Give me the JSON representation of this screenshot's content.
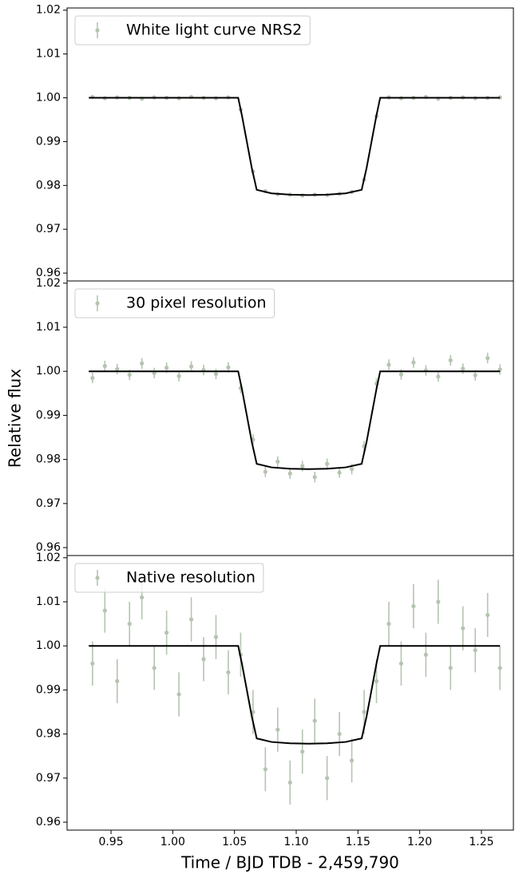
{
  "chart_data": [
    {
      "type": "errorbar",
      "legend": "White light curve NRS2",
      "legend_loc": "upper left",
      "color": "#b5c4b1",
      "x": [
        0.935,
        0.945,
        0.955,
        0.965,
        0.975,
        0.985,
        0.995,
        1.005,
        1.015,
        1.025,
        1.035,
        1.045,
        1.055,
        1.065,
        1.075,
        1.085,
        1.095,
        1.105,
        1.115,
        1.125,
        1.135,
        1.145,
        1.155,
        1.165,
        1.175,
        1.185,
        1.195,
        1.205,
        1.215,
        1.225,
        1.235,
        1.245,
        1.255,
        1.265
      ],
      "values": [
        1.0002,
        0.9999,
        1.0001,
        1.0,
        0.9998,
        1.0001,
        1.0,
        0.9999,
        1.0002,
        1.0,
        0.9999,
        1.0001,
        0.9973,
        0.9832,
        0.9787,
        0.978,
        0.9779,
        0.9777,
        0.9779,
        0.9778,
        0.9781,
        0.9785,
        0.9813,
        0.9958,
        1.0001,
        0.9999,
        1.0,
        1.0002,
        0.9998,
        1.0,
        1.0001,
        0.9999,
        1.0,
        1.0001
      ],
      "yerr": 0.0004,
      "model": {
        "color": "#000000",
        "x": [
          0.932,
          1.053,
          1.056,
          1.06,
          1.064,
          1.068,
          1.08,
          1.095,
          1.11,
          1.125,
          1.14,
          1.153,
          1.157,
          1.161,
          1.165,
          1.168,
          1.265
        ],
        "values": [
          1.0,
          1.0,
          0.996,
          0.99,
          0.984,
          0.979,
          0.9782,
          0.9779,
          0.9778,
          0.9779,
          0.9782,
          0.979,
          0.984,
          0.99,
          0.996,
          1.0,
          1.0
        ]
      },
      "xlim": [
        0.9144,
        1.2759
      ],
      "ylim": [
        0.9582,
        1.0205
      ],
      "yticks": [
        0.96,
        0.97,
        0.98,
        0.99,
        {
          "value": 1.0,
          "label": "1.00"
        },
        1.01,
        1.02
      ]
    },
    {
      "type": "errorbar",
      "legend": "30 pixel resolution",
      "legend_loc": "upper left",
      "color": "#b5c4b1",
      "ylabel": "Relative flux",
      "x": [
        0.935,
        0.945,
        0.955,
        0.965,
        0.975,
        0.985,
        0.995,
        1.005,
        1.015,
        1.025,
        1.035,
        1.045,
        1.055,
        1.065,
        1.075,
        1.085,
        1.095,
        1.105,
        1.115,
        1.125,
        1.135,
        1.145,
        1.155,
        1.165,
        1.175,
        1.185,
        1.195,
        1.205,
        1.215,
        1.225,
        1.235,
        1.245,
        1.255,
        1.265
      ],
      "values": [
        0.9985,
        1.0012,
        1.0005,
        0.9992,
        1.0018,
        0.9996,
        1.0008,
        0.9989,
        1.0011,
        1.0003,
        0.9994,
        1.0009,
        0.9962,
        0.9845,
        0.9772,
        0.9795,
        0.9768,
        0.9785,
        0.976,
        0.979,
        0.977,
        0.9778,
        0.983,
        0.9972,
        1.0015,
        0.9993,
        1.002,
        1.0002,
        0.9988,
        1.0025,
        1.0006,
        0.9991,
        1.003,
        1.0004
      ],
      "yerr": 0.0012,
      "model": {
        "color": "#000000",
        "x": [
          0.932,
          1.053,
          1.056,
          1.06,
          1.064,
          1.068,
          1.08,
          1.095,
          1.11,
          1.125,
          1.14,
          1.153,
          1.157,
          1.161,
          1.165,
          1.168,
          1.265
        ],
        "values": [
          1.0,
          1.0,
          0.996,
          0.99,
          0.984,
          0.979,
          0.9782,
          0.9779,
          0.9778,
          0.9779,
          0.9782,
          0.979,
          0.984,
          0.99,
          0.996,
          1.0,
          1.0
        ]
      },
      "xlim": [
        0.9144,
        1.2759
      ],
      "ylim": [
        0.9582,
        1.0205
      ],
      "yticks": [
        0.96,
        0.97,
        0.98,
        0.99,
        {
          "value": 1.0,
          "label": "1.00"
        },
        1.01,
        1.02
      ]
    },
    {
      "type": "errorbar",
      "legend": "Native resolution",
      "legend_loc": "upper left",
      "color": "#b5c4b1",
      "xlabel": "Time / BJD TDB - 2,459,790",
      "x": [
        0.935,
        0.945,
        0.955,
        0.965,
        0.975,
        0.985,
        0.995,
        1.005,
        1.015,
        1.025,
        1.035,
        1.045,
        1.055,
        1.065,
        1.075,
        1.085,
        1.095,
        1.105,
        1.115,
        1.125,
        1.135,
        1.145,
        1.155,
        1.165,
        1.175,
        1.185,
        1.195,
        1.205,
        1.215,
        1.225,
        1.235,
        1.245,
        1.255,
        1.265
      ],
      "values": [
        0.996,
        1.008,
        0.992,
        1.005,
        1.011,
        0.995,
        1.003,
        0.989,
        1.006,
        0.997,
        1.002,
        0.994,
        0.998,
        0.985,
        0.972,
        0.981,
        0.969,
        0.976,
        0.983,
        0.97,
        0.98,
        0.974,
        0.985,
        0.992,
        1.005,
        0.996,
        1.009,
        0.998,
        1.01,
        0.995,
        1.004,
        0.999,
        1.007,
        0.995
      ],
      "yerr": 0.005,
      "model": {
        "color": "#000000",
        "x": [
          0.932,
          1.053,
          1.056,
          1.06,
          1.064,
          1.068,
          1.08,
          1.095,
          1.11,
          1.125,
          1.14,
          1.153,
          1.157,
          1.161,
          1.165,
          1.168,
          1.265
        ],
        "values": [
          1.0,
          1.0,
          0.996,
          0.99,
          0.984,
          0.979,
          0.9782,
          0.9779,
          0.9778,
          0.9779,
          0.9782,
          0.979,
          0.984,
          0.99,
          0.996,
          1.0,
          1.0
        ]
      },
      "xlim": [
        0.9144,
        1.2759
      ],
      "ylim": [
        0.9582,
        1.0205
      ],
      "yticks": [
        0.96,
        0.97,
        0.98,
        0.99,
        {
          "value": 1.0,
          "label": "1.00"
        },
        1.01,
        1.02
      ],
      "xticks": [
        0.95,
        {
          "value": 1.0,
          "label": "1.00"
        },
        1.05,
        {
          "value": 1.1,
          "label": "1.10"
        },
        1.15,
        {
          "value": 1.2,
          "label": "1.20"
        },
        1.25
      ]
    }
  ]
}
